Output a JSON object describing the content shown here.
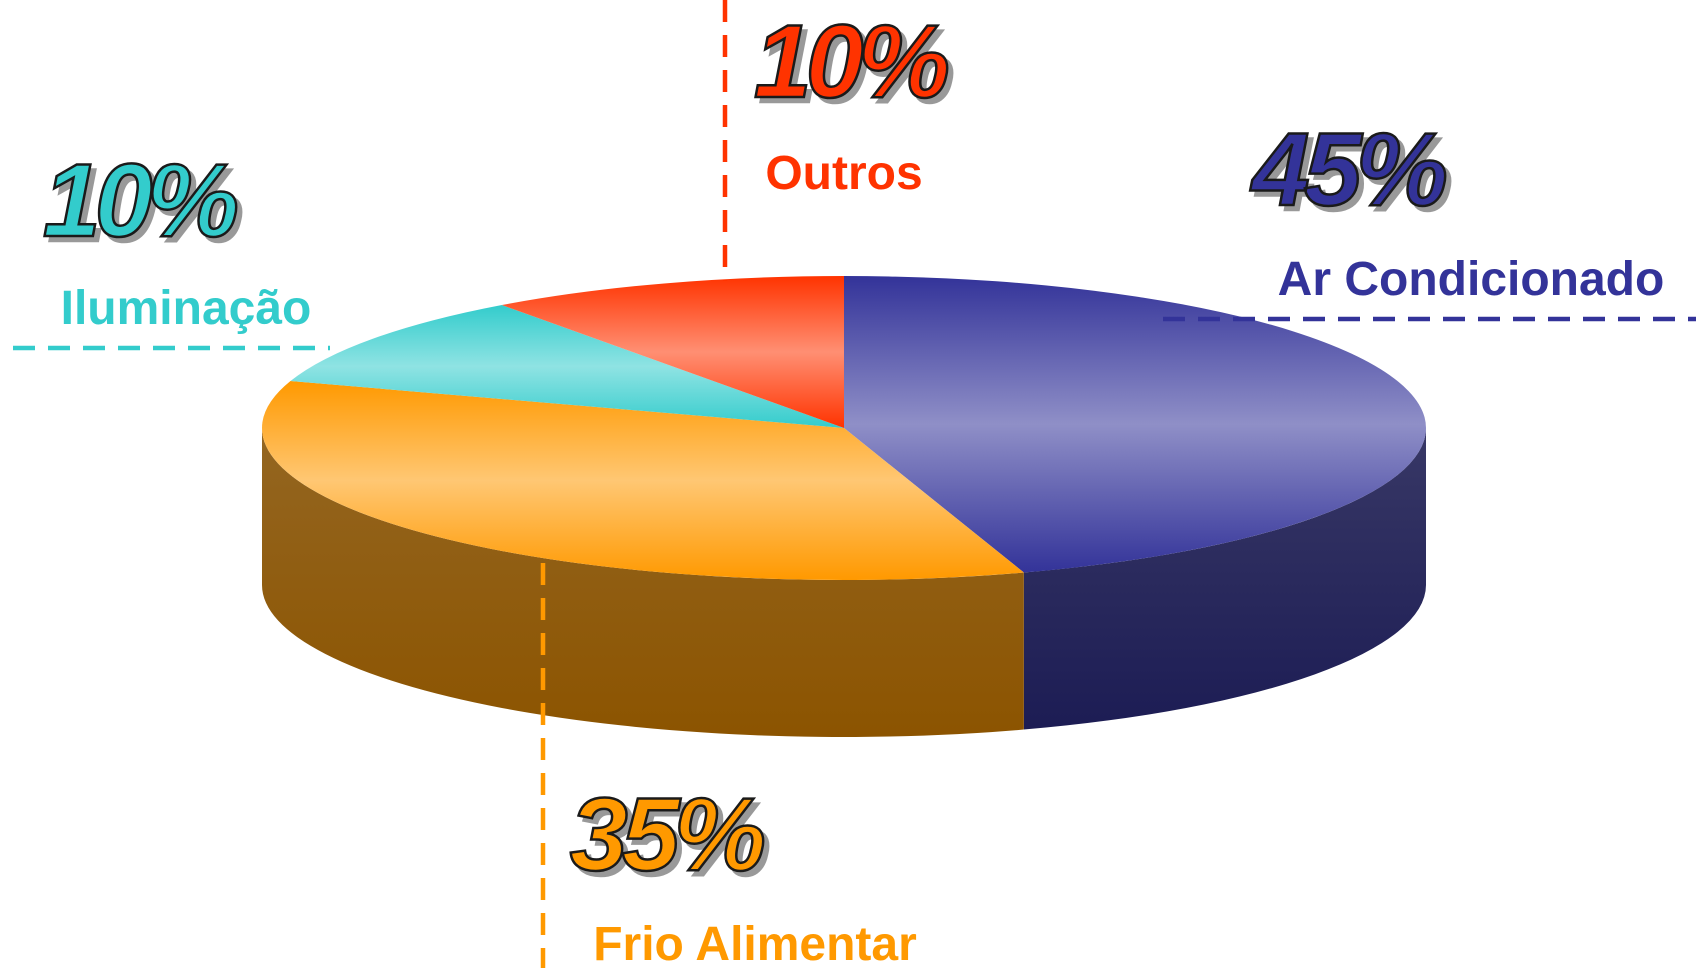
{
  "chart_data": {
    "type": "pie",
    "categories": [
      "Ar Condicionado",
      "Frio Alimentar",
      "Iluminação",
      "Outros"
    ],
    "values": [
      45,
      35,
      10,
      10
    ],
    "value_labels": [
      "45%",
      "35%",
      "10%",
      "10%"
    ],
    "colors": [
      "#333399",
      "#ff9900",
      "#33cccc",
      "#ff3300"
    ]
  }
}
